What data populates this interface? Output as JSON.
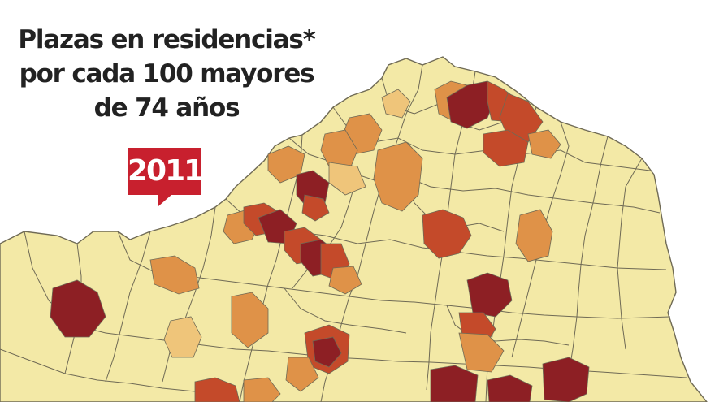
{
  "title": {
    "line1": "Plazas en residencias*",
    "line2": "por cada 100 mayores",
    "line3": "de 74 años"
  },
  "year_badge": "2011",
  "colors": {
    "background": "#ffffff",
    "land_base": "#f3e9a6",
    "low": "#efc57a",
    "medium": "#df9248",
    "high": "#c44a2a",
    "very_high": "#8d1f24",
    "borders": "#6f6a55",
    "badge": "#c8202e",
    "title_text": "#222222"
  }
}
